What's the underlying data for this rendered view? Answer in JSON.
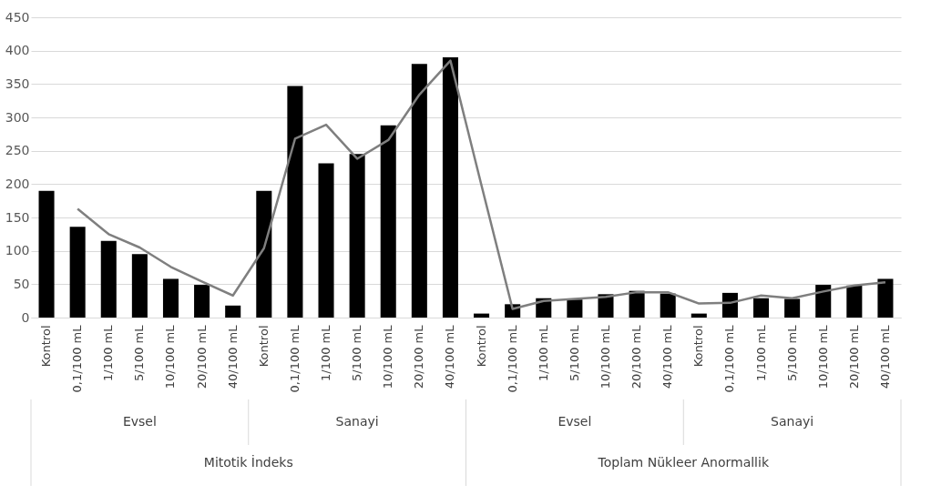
{
  "chart_data": {
    "type": "bar",
    "categories": [
      "Kontrol",
      "0,1/100 mL",
      "1/100 mL",
      "5/100 mL",
      "10/100 mL",
      "20/100 mL",
      "40/100 mL",
      "Kontrol",
      "0,1/100 mL",
      "1/100 mL",
      "5/100 mL",
      "10/100 mL",
      "20/100 mL",
      "40/100 mL",
      "Kontrol",
      "0,1/100 mL",
      "1/100 mL",
      "5/100 mL",
      "10/100 mL",
      "20/100 mL",
      "40/100 mL",
      "Kontrol",
      "0,1/100 mL",
      "1/100 mL",
      "5/100 mL",
      "10/100 mL",
      "20/100 mL",
      "40/100 mL"
    ],
    "series": [
      {
        "color": "#000000",
        "values": [
          190,
          136,
          115,
          95,
          58,
          49,
          18,
          190,
          347,
          231,
          245,
          288,
          380,
          390,
          6,
          20,
          29,
          27,
          35,
          40,
          36,
          6,
          37,
          29,
          28,
          49,
          48,
          58
        ]
      },
      {
        "type": "line",
        "color": "#7f7f7f",
        "values": [
          null,
          163,
          125,
          105,
          76,
          54,
          33,
          104,
          268,
          289,
          238,
          266,
          334,
          385,
          198,
          13,
          25,
          28,
          31,
          38,
          38,
          21,
          22,
          33,
          29,
          39,
          48,
          53
        ]
      }
    ],
    "annotations": [
      "Evsel",
      "Sanayi",
      "Evsel",
      "Sanayi",
      "Mitotik İndeks",
      "Toplam Nükleer Anormallik"
    ],
    "ylim": [
      0,
      450
    ],
    "yticks": [
      0,
      50,
      100,
      150,
      200,
      250,
      300,
      350,
      400,
      450
    ],
    "grid": "y"
  }
}
